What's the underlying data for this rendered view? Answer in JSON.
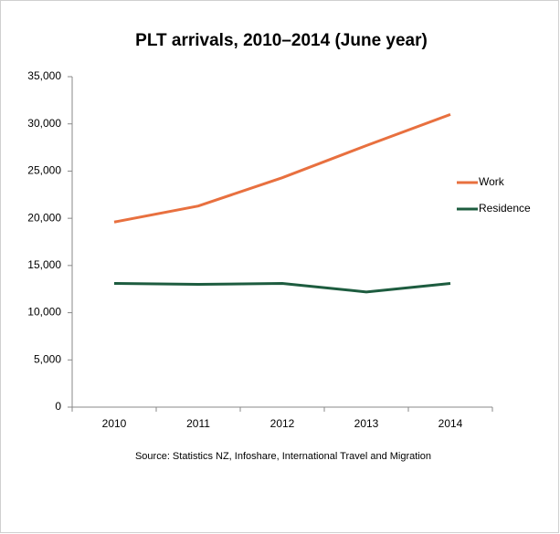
{
  "chart_data": {
    "type": "line",
    "title": "PLT arrivals, 2010–2014 (June year)",
    "categories": [
      "2010",
      "2011",
      "2012",
      "2013",
      "2014"
    ],
    "series": [
      {
        "name": "Work",
        "color": "#e8703f",
        "values": [
          19600,
          21300,
          24300,
          27700,
          31000
        ]
      },
      {
        "name": "Residence",
        "color": "#1d5c3f",
        "values": [
          13100,
          13000,
          13100,
          12200,
          13100
        ]
      }
    ],
    "ylim": [
      0,
      35000
    ],
    "yticks": [
      0,
      {
        "value": 5000,
        "label": "5,000"
      },
      {
        "value": 10000,
        "label": "10,000"
      },
      {
        "value": 15000,
        "label": "15,000"
      },
      {
        "value": 20000,
        "label": "20,000"
      },
      {
        "value": 25000,
        "label": "25,000"
      },
      {
        "value": 30000,
        "label": "30,000"
      },
      {
        "value": 35000,
        "label": "35,000"
      }
    ],
    "legend": "right",
    "source": "Source: Statistics NZ, Infoshare, International Travel and Migration"
  }
}
